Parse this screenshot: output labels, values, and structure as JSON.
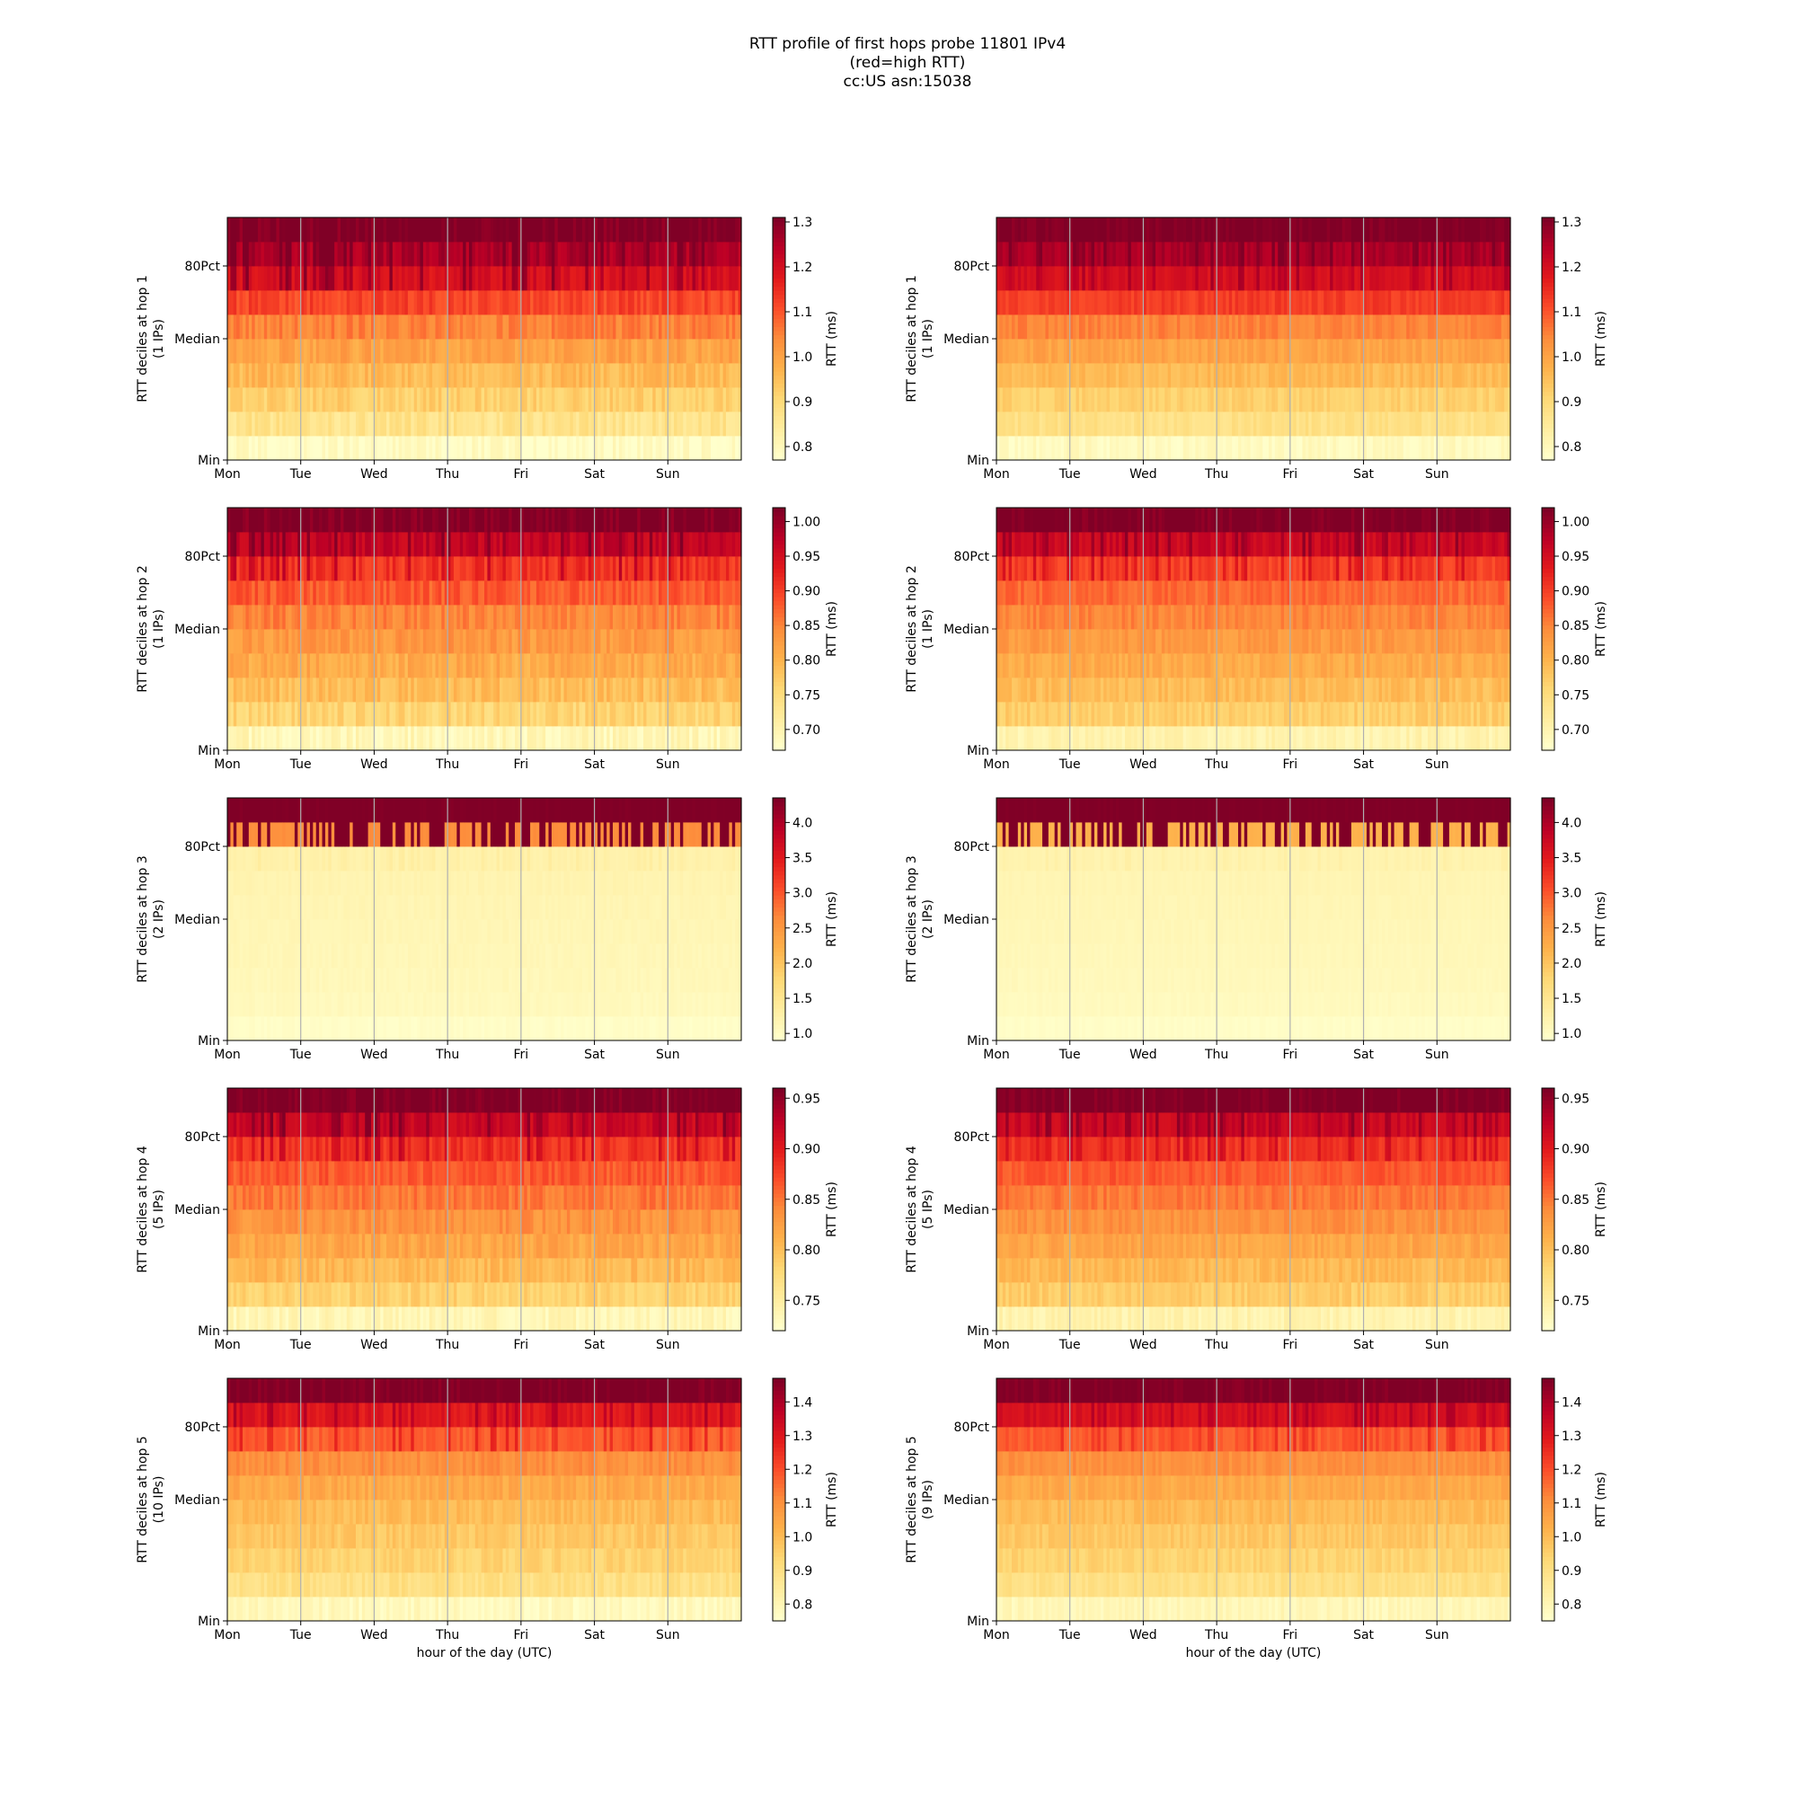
{
  "title": [
    "RTT profile of first hops probe 11801 IPv4",
    "(red=high RTT)",
    "cc:US asn:15038"
  ],
  "chart_data": {
    "type": "heatmap",
    "layout": {
      "rows": 5,
      "cols": 2
    },
    "x_ticks": [
      "Mon",
      "Tue",
      "Wed",
      "Thu",
      "Fri",
      "Sat",
      "Sun"
    ],
    "y_ticks": [
      "Min",
      "Median",
      "80Pct"
    ],
    "xlabel": "hour of the day (UTC)",
    "colorbar_label": "RTT (ms)",
    "colormap": [
      "#ffffcc",
      "#ffeda0",
      "#fed976",
      "#feb24c",
      "#fd8d3c",
      "#fc4e2a",
      "#e31a1c",
      "#bd0026",
      "#800026"
    ],
    "grid_color": "#b0b0b0",
    "panels": [
      {
        "hop": 1,
        "ylabel": "RTT deciles at hop 1",
        "ips": "(1 IPs)",
        "ticks": [
          "0.8",
          "0.9",
          "1.0",
          "1.1",
          "1.2",
          "1.3"
        ],
        "tick_values": [
          0.8,
          0.9,
          1.0,
          1.1,
          1.2,
          1.3
        ],
        "range": [
          0.77,
          1.31
        ],
        "base": [
          0.78,
          0.87,
          0.92,
          0.96,
          1.0,
          1.05,
          1.12,
          1.2,
          1.26,
          1.31
        ],
        "noise": 0.03
      },
      {
        "hop": 1,
        "ylabel": "RTT deciles at hop 1",
        "ips": "(1 IPs)",
        "ticks": [
          "0.8",
          "0.9",
          "1.0",
          "1.1",
          "1.2",
          "1.3"
        ],
        "tick_values": [
          0.8,
          0.9,
          1.0,
          1.1,
          1.2,
          1.3
        ],
        "range": [
          0.77,
          1.31
        ],
        "base": [
          0.79,
          0.88,
          0.92,
          0.96,
          1.0,
          1.05,
          1.13,
          1.2,
          1.26,
          1.31
        ],
        "noise": 0.02
      },
      {
        "hop": 2,
        "ylabel": "RTT deciles at hop 2",
        "ips": "(1 IPs)",
        "ticks": [
          "0.70",
          "0.75",
          "0.80",
          "0.85",
          "0.90",
          "0.95",
          "1.00"
        ],
        "tick_values": [
          0.7,
          0.75,
          0.8,
          0.85,
          0.9,
          0.95,
          1.0
        ],
        "range": [
          0.67,
          1.02
        ],
        "base": [
          0.69,
          0.76,
          0.79,
          0.81,
          0.83,
          0.85,
          0.88,
          0.91,
          0.97,
          1.02
        ],
        "noise": 0.02
      },
      {
        "hop": 2,
        "ylabel": "RTT deciles at hop 2",
        "ips": "(1 IPs)",
        "ticks": [
          "0.70",
          "0.75",
          "0.80",
          "0.85",
          "0.90",
          "0.95",
          "1.00"
        ],
        "tick_values": [
          0.7,
          0.75,
          0.8,
          0.85,
          0.9,
          0.95,
          1.0
        ],
        "range": [
          0.67,
          1.02
        ],
        "base": [
          0.7,
          0.77,
          0.79,
          0.81,
          0.83,
          0.85,
          0.87,
          0.9,
          0.96,
          1.02
        ],
        "noise": 0.015
      },
      {
        "hop": 3,
        "ylabel": "RTT deciles at hop 3",
        "ips": "(2 IPs)",
        "ticks": [
          "1.0",
          "1.5",
          "2.0",
          "2.5",
          "3.0",
          "3.5",
          "4.0"
        ],
        "tick_values": [
          1.0,
          1.5,
          2.0,
          2.5,
          3.0,
          3.5,
          4.0
        ],
        "range": [
          0.9,
          4.35
        ],
        "base": [
          0.95,
          1.05,
          1.08,
          1.1,
          1.12,
          1.14,
          1.17,
          1.22,
          2.6,
          4.35
        ],
        "noise": 0.04
      },
      {
        "hop": 3,
        "ylabel": "RTT deciles at hop 3",
        "ips": "(2 IPs)",
        "ticks": [
          "1.0",
          "1.5",
          "2.0",
          "2.5",
          "3.0",
          "3.5",
          "4.0"
        ],
        "tick_values": [
          1.0,
          1.5,
          2.0,
          2.5,
          3.0,
          3.5,
          4.0
        ],
        "range": [
          0.9,
          4.35
        ],
        "base": [
          0.95,
          1.03,
          1.06,
          1.08,
          1.1,
          1.12,
          1.14,
          1.18,
          2.2,
          4.35
        ],
        "noise": 0.03
      },
      {
        "hop": 4,
        "ylabel": "RTT deciles at hop 4",
        "ips": "(5 IPs)",
        "ticks": [
          "0.75",
          "0.80",
          "0.85",
          "0.90",
          "0.95"
        ],
        "tick_values": [
          0.75,
          0.8,
          0.85,
          0.9,
          0.95
        ],
        "range": [
          0.72,
          0.96
        ],
        "base": [
          0.735,
          0.785,
          0.805,
          0.82,
          0.835,
          0.85,
          0.865,
          0.885,
          0.92,
          0.96
        ],
        "noise": 0.012
      },
      {
        "hop": 4,
        "ylabel": "RTT deciles at hop 4",
        "ips": "(5 IPs)",
        "ticks": [
          "0.75",
          "0.80",
          "0.85",
          "0.90",
          "0.95"
        ],
        "tick_values": [
          0.75,
          0.8,
          0.85,
          0.9,
          0.95
        ],
        "range": [
          0.72,
          0.96
        ],
        "base": [
          0.74,
          0.79,
          0.805,
          0.82,
          0.835,
          0.85,
          0.865,
          0.885,
          0.92,
          0.96
        ],
        "noise": 0.01
      },
      {
        "hop": 5,
        "ylabel": "RTT deciles at hop 5",
        "ips": "(10 IPs)",
        "ticks": [
          "0.8",
          "0.9",
          "1.0",
          "1.1",
          "1.2",
          "1.3",
          "1.4"
        ],
        "tick_values": [
          0.8,
          0.9,
          1.0,
          1.1,
          1.2,
          1.3,
          1.4
        ],
        "range": [
          0.75,
          1.47
        ],
        "base": [
          0.78,
          0.9,
          0.94,
          0.97,
          1.0,
          1.04,
          1.1,
          1.18,
          1.3,
          1.47
        ],
        "noise": 0.03
      },
      {
        "hop": 5,
        "ylabel": "RTT deciles at hop 5",
        "ips": "(9 IPs)",
        "ticks": [
          "0.8",
          "0.9",
          "1.0",
          "1.1",
          "1.2",
          "1.3",
          "1.4"
        ],
        "tick_values": [
          0.8,
          0.9,
          1.0,
          1.1,
          1.2,
          1.3,
          1.4
        ],
        "range": [
          0.75,
          1.47
        ],
        "base": [
          0.79,
          0.9,
          0.94,
          0.97,
          1.0,
          1.04,
          1.1,
          1.18,
          1.32,
          1.47
        ],
        "noise": 0.025
      }
    ]
  }
}
